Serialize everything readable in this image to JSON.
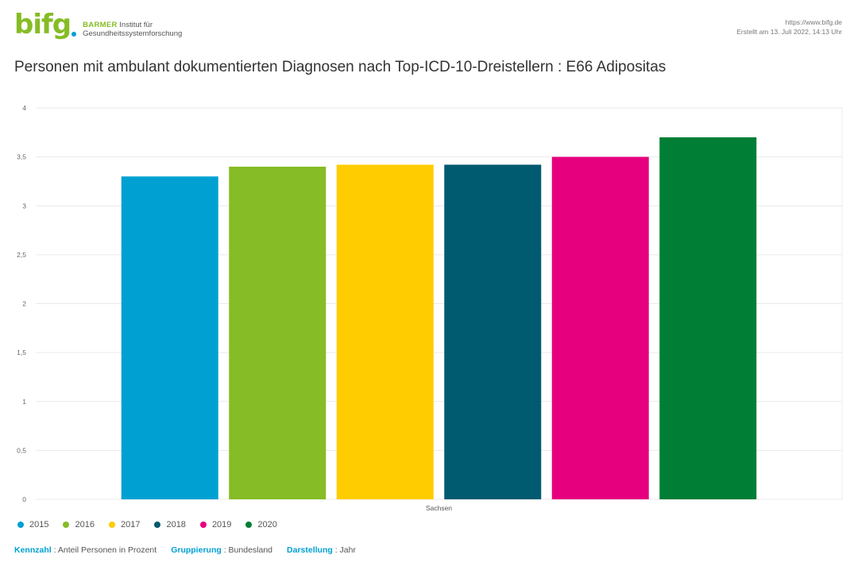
{
  "header": {
    "logo_word": "bifg",
    "logo_brand": "BARMER",
    "logo_line1_rest": "Institut für",
    "logo_line2": "Gesundheitssystemforschung",
    "url": "https://www.bifg.de",
    "created": "Erstellt am 13. Juli 2022, 14:13 Uhr",
    "colors": {
      "brand_green": "#86bc25",
      "brand_blue": "#00a0d2"
    }
  },
  "title": "Personen mit ambulant dokumentierten Diagnosen nach Top-ICD-10-Dreistellern : E66 Adipositas",
  "chart_data": {
    "type": "bar",
    "categories": [
      "Sachsen"
    ],
    "series": [
      {
        "name": "2015",
        "values": [
          3.3
        ],
        "color": "#00a0d2"
      },
      {
        "name": "2016",
        "values": [
          3.4
        ],
        "color": "#86bc25"
      },
      {
        "name": "2017",
        "values": [
          3.42
        ],
        "color": "#ffcc00"
      },
      {
        "name": "2018",
        "values": [
          3.42
        ],
        "color": "#005a70"
      },
      {
        "name": "2019",
        "values": [
          3.5
        ],
        "color": "#e6007e"
      },
      {
        "name": "2020",
        "values": [
          3.7
        ],
        "color": "#007e35"
      }
    ],
    "ylim": [
      0,
      4
    ],
    "yticks": [
      "0",
      "0,5",
      "1",
      "1,5",
      "2",
      "2,5",
      "3",
      "3,5",
      "4"
    ],
    "grid": true,
    "legend_position": "bottom-left"
  },
  "footer": {
    "items": [
      {
        "key": "Kennzahl",
        "value": "Anteil Personen in Prozent"
      },
      {
        "key": "Gruppierung",
        "value": "Bundesland"
      },
      {
        "key": "Darstellung",
        "value": "Jahr"
      }
    ]
  }
}
